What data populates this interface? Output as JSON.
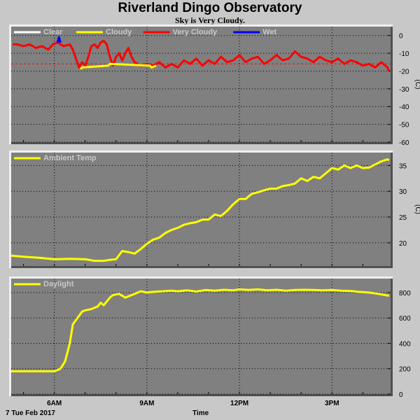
{
  "page": {
    "title": "Riverland Dingo Observatory",
    "subtitle": "Sky is Very Cloudy.",
    "date_label": "7 Tue Feb 2017",
    "time_label": "Time"
  },
  "colors": {
    "plot_bg": "#808080",
    "grid": "#000000",
    "clear": "#ffffff",
    "cloudy": "#ffff00",
    "very_cloudy": "#ff0000",
    "wet": "#0000ff",
    "ambient": "#ffff00",
    "daylight": "#ffff00"
  },
  "chart_data": [
    {
      "type": "line",
      "ylabel": "(C)",
      "ylim": [
        -60,
        5
      ],
      "yticks": [
        0,
        -10,
        -20,
        -30,
        -40,
        -50,
        -60
      ],
      "xlim": [
        4.6,
        16.9
      ],
      "xticks": [
        {
          "x": 6,
          "label": "6AM"
        },
        {
          "x": 9,
          "label": "9AM"
        },
        {
          "x": 12,
          "label": "12PM"
        },
        {
          "x": 15,
          "label": "3PM"
        }
      ],
      "threshold": -16,
      "legend": [
        {
          "name": "Clear",
          "color": "#ffffff"
        },
        {
          "name": "Cloudy",
          "color": "#ffff00"
        },
        {
          "name": "Very Cloudy",
          "color": "#ff0000"
        },
        {
          "name": "Wet",
          "color": "#0000ff"
        }
      ],
      "series": [
        {
          "name": "Very Cloudy",
          "color": "#ff0000",
          "x": [
            4.65,
            4.8,
            5.0,
            5.2,
            5.4,
            5.6,
            5.8,
            5.95,
            6.1,
            6.3,
            6.5,
            6.6,
            6.8,
            6.9,
            7.0,
            7.1,
            7.2,
            7.3,
            7.4,
            7.5,
            7.6,
            7.7,
            7.8,
            7.9,
            8.0,
            8.1,
            8.2,
            8.3,
            8.4,
            8.5,
            8.6,
            8.8,
            9.0,
            9.2,
            9.4,
            9.6,
            9.8,
            10.0,
            10.2,
            10.4,
            10.6,
            10.8,
            11.0,
            11.2,
            11.4,
            11.6,
            11.8,
            12.0,
            12.2,
            12.4,
            12.6,
            12.8,
            13.0,
            13.2,
            13.4,
            13.6,
            13.8,
            14.0,
            14.2,
            14.4,
            14.6,
            14.8,
            15.0,
            15.2,
            15.4,
            15.6,
            15.8,
            16.0,
            16.2,
            16.4,
            16.6,
            16.8,
            16.85
          ],
          "y": [
            -5,
            -5,
            -6,
            -5,
            -7,
            -6,
            -8,
            -5,
            -4,
            -6,
            -5,
            -8,
            -18,
            -15,
            -17,
            -12,
            -6,
            -5,
            -7,
            -4,
            -3,
            -5,
            -12,
            -17,
            -12,
            -10,
            -14,
            -10,
            -7,
            -12,
            -15,
            -17,
            -16,
            -17,
            -15,
            -18,
            -16,
            -18,
            -14,
            -16,
            -13,
            -17,
            -14,
            -16,
            -12,
            -15,
            -14,
            -11,
            -15,
            -13,
            -12,
            -16,
            -14,
            -11,
            -14,
            -13,
            -9,
            -12,
            -13,
            -15,
            -12,
            -14,
            -15,
            -13,
            -16,
            -14,
            -15,
            -17,
            -16,
            -18,
            -15,
            -18,
            -20
          ]
        },
        {
          "name": "Cloudy",
          "color": "#ffff00",
          "x": [
            6.85,
            6.9,
            7.75,
            7.8,
            9.1,
            9.15,
            9.3
          ],
          "y": [
            -19,
            -18,
            -17,
            -16,
            -17,
            -18,
            -17
          ]
        },
        {
          "name": "Wet",
          "color": "#0000ff",
          "x": [
            6.1,
            6.15,
            6.2
          ],
          "y": [
            -4,
            -1,
            -4
          ]
        }
      ]
    },
    {
      "type": "line",
      "ylabel": "(C)",
      "ylim": [
        15.5,
        37.5
      ],
      "yticks": [
        20,
        25,
        30,
        35
      ],
      "xlim": [
        4.6,
        16.9
      ],
      "xticks": [
        {
          "x": 6,
          "label": "6AM"
        },
        {
          "x": 9,
          "label": "9AM"
        },
        {
          "x": 12,
          "label": "12PM"
        },
        {
          "x": 15,
          "label": "3PM"
        }
      ],
      "legend": [
        {
          "name": "Ambient Temp",
          "color": "#ffff00"
        }
      ],
      "series": [
        {
          "name": "Ambient Temp",
          "color": "#ffff00",
          "x": [
            4.6,
            5.0,
            5.5,
            6.0,
            6.5,
            7.0,
            7.3,
            7.6,
            7.8,
            8.0,
            8.2,
            8.4,
            8.6,
            8.8,
            9.0,
            9.2,
            9.4,
            9.6,
            9.8,
            10.0,
            10.2,
            10.4,
            10.6,
            10.8,
            11.0,
            11.2,
            11.4,
            11.6,
            11.8,
            12.0,
            12.2,
            12.4,
            12.6,
            12.8,
            13.0,
            13.2,
            13.4,
            13.6,
            13.8,
            14.0,
            14.2,
            14.4,
            14.6,
            14.8,
            15.0,
            15.2,
            15.4,
            15.6,
            15.8,
            16.0,
            16.2,
            16.4,
            16.6,
            16.8,
            16.85
          ],
          "y": [
            17.5,
            17.3,
            17.1,
            16.8,
            16.9,
            16.8,
            16.5,
            16.5,
            16.7,
            16.8,
            18.4,
            18.2,
            17.9,
            18.8,
            19.8,
            20.6,
            21.0,
            21.9,
            22.5,
            22.9,
            23.5,
            23.8,
            24.0,
            24.5,
            24.5,
            25.5,
            25.2,
            26.2,
            27.5,
            28.5,
            28.5,
            29.5,
            29.8,
            30.2,
            30.5,
            30.5,
            31.0,
            31.2,
            31.5,
            32.5,
            32.0,
            32.8,
            32.5,
            33.5,
            34.5,
            34.2,
            35.0,
            34.5,
            35.0,
            34.5,
            34.6,
            35.2,
            35.8,
            36.2,
            36.0
          ]
        }
      ]
    },
    {
      "type": "line",
      "ylabel": "",
      "ylim": [
        0,
        910
      ],
      "yticks": [
        0,
        200,
        400,
        600,
        800
      ],
      "xlim": [
        4.6,
        16.9
      ],
      "xticks": [
        {
          "x": 6,
          "label": "6AM"
        },
        {
          "x": 9,
          "label": "9AM"
        },
        {
          "x": 12,
          "label": "12PM"
        },
        {
          "x": 15,
          "label": "3PM"
        }
      ],
      "legend": [
        {
          "name": "Daylight",
          "color": "#ffff00"
        }
      ],
      "series": [
        {
          "name": "Daylight",
          "color": "#ffff00",
          "x": [
            4.6,
            5.0,
            5.5,
            6.0,
            6.2,
            6.35,
            6.5,
            6.6,
            6.75,
            6.9,
            7.0,
            7.2,
            7.4,
            7.5,
            7.6,
            7.8,
            7.9,
            8.1,
            8.3,
            8.6,
            8.8,
            9.0,
            9.2,
            9.5,
            9.8,
            10.0,
            10.3,
            10.6,
            10.9,
            11.2,
            11.5,
            11.8,
            12.0,
            12.3,
            12.6,
            12.9,
            13.2,
            13.5,
            13.8,
            14.1,
            14.4,
            14.7,
            15.0,
            15.3,
            15.6,
            15.9,
            16.2,
            16.5,
            16.85
          ],
          "y": [
            180,
            180,
            180,
            180,
            200,
            260,
            400,
            550,
            600,
            650,
            660,
            670,
            690,
            720,
            700,
            760,
            780,
            790,
            760,
            790,
            810,
            800,
            805,
            810,
            815,
            810,
            818,
            808,
            820,
            815,
            822,
            818,
            825,
            820,
            825,
            818,
            822,
            815,
            820,
            822,
            820,
            818,
            820,
            815,
            812,
            805,
            800,
            790,
            775
          ]
        }
      ]
    }
  ]
}
